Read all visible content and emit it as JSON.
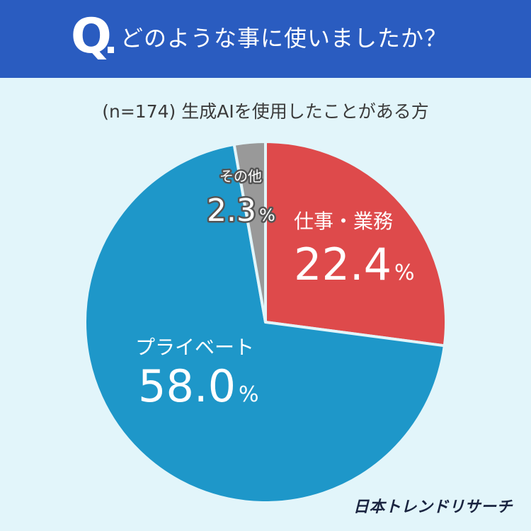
{
  "header": {
    "q_mark": "Q",
    "question": "どのような事に使いましたか？"
  },
  "subtitle": "(n=174) 生成AIを使用したことがある方",
  "brand": "日本トレンドリサーチ",
  "colors": {
    "header_bg": "#2a5cc0",
    "page_bg": "#e2f5fa",
    "work": "#de4a4b",
    "private": "#1e97c9",
    "other": "#999999"
  },
  "chart_data": {
    "type": "pie",
    "start_angle_deg": 0,
    "direction": "clockwise",
    "slices": [
      {
        "label": "仕事・業務",
        "value": 22.4,
        "display": "22.4",
        "unit": "%",
        "color": "#de4a4b"
      },
      {
        "label": "プライベート",
        "value": 58.0,
        "display": "58.0",
        "unit": "%",
        "color": "#1e97c9"
      },
      {
        "label": "その他",
        "value": 2.3,
        "display": "2.3",
        "unit": "%",
        "color": "#999999"
      }
    ]
  }
}
